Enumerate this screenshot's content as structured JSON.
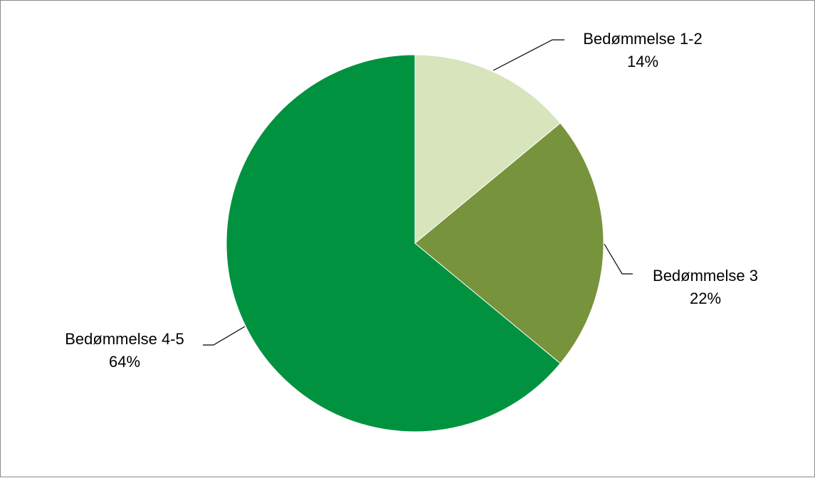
{
  "chart_data": {
    "type": "pie",
    "title": "",
    "slices": [
      {
        "label": "Bedømmelse 1-2",
        "value": 14,
        "display": "14%",
        "color": "#d8e4bc"
      },
      {
        "label": "Bedømmelse 3",
        "value": 22,
        "display": "22%",
        "color": "#77933c"
      },
      {
        "label": "Bedømmelse 4-5",
        "value": 64,
        "display": "64%",
        "color": "#00923f"
      }
    ],
    "start_angle_deg": 0,
    "direction": "clockwise",
    "legend": "none"
  }
}
